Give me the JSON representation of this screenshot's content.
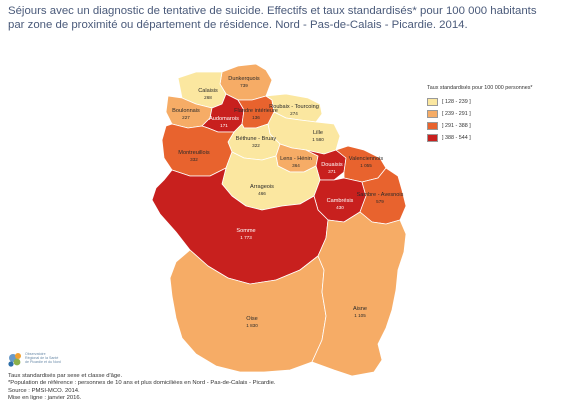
{
  "title": "Séjours avec un diagnostic de tentative de suicide. Effectifs et taux standardisés* pour 100 000 habitants par zone de proximité ou département de résidence. Nord - Pas-de-Calais - Picardie. 2014.",
  "legend": {
    "title": "Taux standardisés pour 100 000 personnes*",
    "classes": [
      {
        "label": "[ 128 - 239 ]",
        "color": "#fbe7a0"
      },
      {
        "label": "[ 239 - 291 ]",
        "color": "#f6ac66"
      },
      {
        "label": "] 291 - 388 ]",
        "color": "#e8632e"
      },
      {
        "label": "] 388 - 544 ]",
        "color": "#c8201e"
      }
    ]
  },
  "zones": [
    {
      "name": "Dunkerquois",
      "value": "739",
      "cls": 1
    },
    {
      "name": "Calaisis",
      "value": "268",
      "cls": 0
    },
    {
      "name": "Boulonnais",
      "value": "227",
      "cls": 1
    },
    {
      "name": "Audomarois",
      "value": "171",
      "cls": 3
    },
    {
      "name": "Flandre intérieure",
      "value": "136",
      "cls": 2
    },
    {
      "name": "Roubaix - Tourcoing",
      "value": "274",
      "cls": 0
    },
    {
      "name": "Lille",
      "value": "1 580",
      "cls": 0
    },
    {
      "name": "Béthune - Bruay",
      "value": "322",
      "cls": 0
    },
    {
      "name": "Montreuillois",
      "value": "332",
      "cls": 2
    },
    {
      "name": "Lens - Hénin",
      "value": "364",
      "cls": 1
    },
    {
      "name": "Douaisis",
      "value": "371",
      "cls": 3
    },
    {
      "name": "Valenciennois",
      "value": "1 055",
      "cls": 2
    },
    {
      "name": "Arrageois",
      "value": "466",
      "cls": 0
    },
    {
      "name": "Cambrésis",
      "value": "430",
      "cls": 3
    },
    {
      "name": "Sambre - Avesnois",
      "value": "579",
      "cls": 2
    },
    {
      "name": "Somme",
      "value": "1 773",
      "cls": 3
    },
    {
      "name": "Oise",
      "value": "1 830",
      "cls": 1
    },
    {
      "name": "Aisne",
      "value": "1 105",
      "cls": 1
    }
  ],
  "logo": {
    "name_lines": [
      "Observatoire",
      "Régional de la Santé",
      "de Picardie et du Nord"
    ]
  },
  "footer": {
    "note1": "Taux standardisés par sexe et classe d'âge.",
    "note2": "*Population de référence : personnes de 10 ans et plus domiciliées en Nord - Pas-de-Calais - Picardie.",
    "source": "Source : PMSI-MCO. 2014.",
    "online": "Mise en ligne : janvier 2016."
  }
}
